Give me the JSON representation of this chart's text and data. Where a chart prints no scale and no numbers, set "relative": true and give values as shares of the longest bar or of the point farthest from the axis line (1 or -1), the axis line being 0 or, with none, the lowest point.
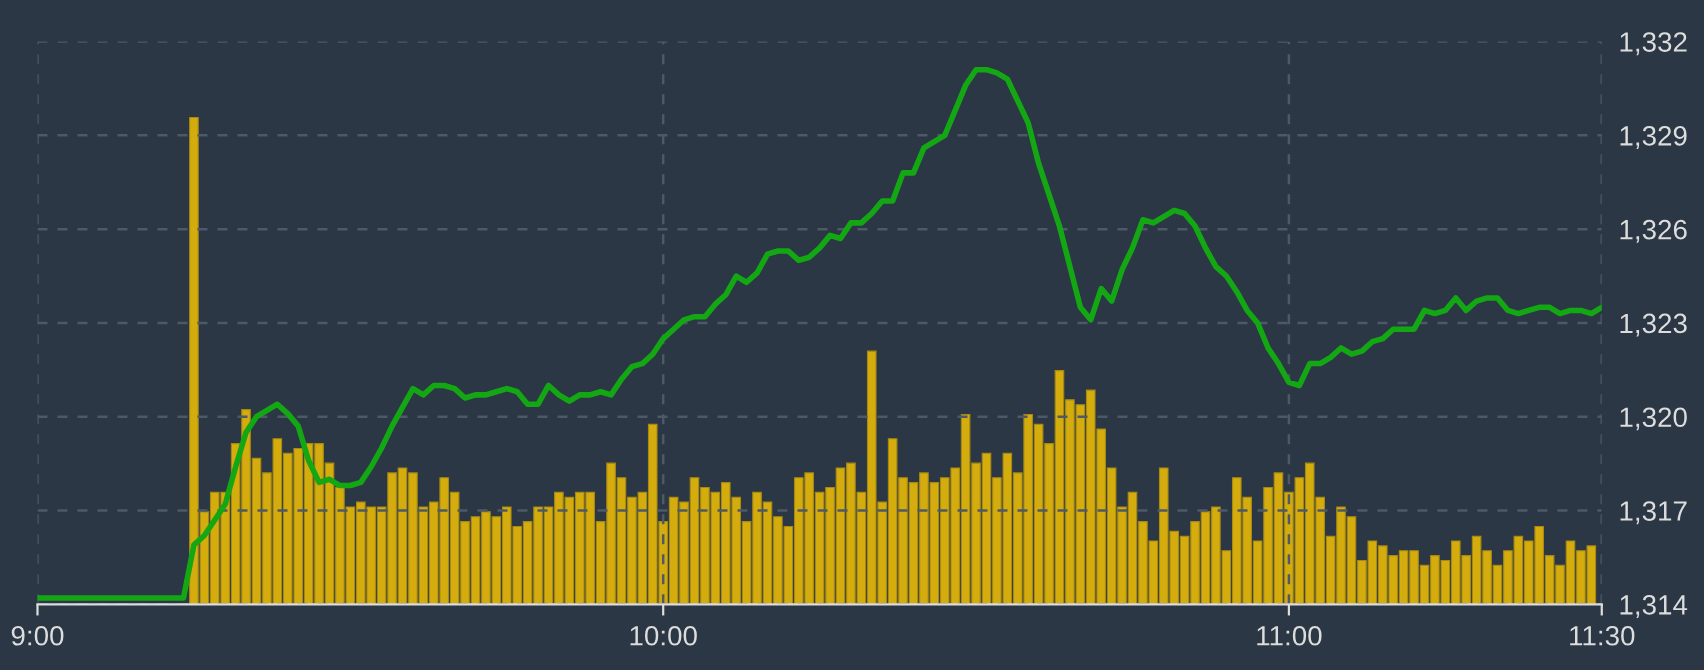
{
  "chart_data": [
    {
      "type": "bar",
      "relative": true,
      "tick_labels": false,
      "color": "#d4ac0d",
      "xlim": [
        9,
        11.5
      ],
      "x": [
        9.25,
        9.2667,
        9.2833,
        9.3,
        9.3167,
        9.3333,
        9.35,
        9.3667,
        9.3833,
        9.4,
        9.4167,
        9.4333,
        9.45,
        9.4667,
        9.4833,
        9.5,
        9.5167,
        9.5333,
        9.55,
        9.5667,
        9.5833,
        9.6,
        9.6167,
        9.6333,
        9.65,
        9.6667,
        9.6833,
        9.7,
        9.7167,
        9.7333,
        9.75,
        9.7667,
        9.7833,
        9.8,
        9.8167,
        9.8333,
        9.85,
        9.8667,
        9.8833,
        9.9,
        9.9167,
        9.9333,
        9.95,
        9.9667,
        9.9833,
        10,
        10.0167,
        10.0333,
        10.05,
        10.0667,
        10.0833,
        10.1,
        10.1167,
        10.1333,
        10.15,
        10.1667,
        10.1833,
        10.2,
        10.2167,
        10.2333,
        10.25,
        10.2667,
        10.2833,
        10.3,
        10.3167,
        10.3333,
        10.35,
        10.3667,
        10.3833,
        10.4,
        10.4167,
        10.4333,
        10.45,
        10.4667,
        10.4833,
        10.5,
        10.5167,
        10.5333,
        10.55,
        10.5667,
        10.5833,
        10.6,
        10.6167,
        10.6333,
        10.65,
        10.6667,
        10.6833,
        10.7,
        10.7167,
        10.7333,
        10.75,
        10.7667,
        10.7833,
        10.8,
        10.8167,
        10.8333,
        10.85,
        10.8667,
        10.8833,
        10.9,
        10.9167,
        10.9333,
        10.95,
        10.9667,
        10.9833,
        11,
        11.0167,
        11.0333,
        11.05,
        11.0667,
        11.0833,
        11.1,
        11.1167,
        11.1333,
        11.15,
        11.1667,
        11.1833,
        11.2,
        11.2167,
        11.2333,
        11.25,
        11.2667,
        11.2833,
        11.3,
        11.3167,
        11.3333,
        11.35,
        11.3667,
        11.3833,
        11.4,
        11.4167,
        11.4333,
        11.45,
        11.4667,
        11.4833
      ],
      "values": [
        1.0,
        0.19,
        0.23,
        0.23,
        0.33,
        0.4,
        0.3,
        0.27,
        0.34,
        0.31,
        0.32,
        0.33,
        0.33,
        0.29,
        0.24,
        0.2,
        0.21,
        0.2,
        0.2,
        0.27,
        0.28,
        0.27,
        0.2,
        0.21,
        0.26,
        0.23,
        0.17,
        0.18,
        0.19,
        0.18,
        0.2,
        0.16,
        0.17,
        0.2,
        0.2,
        0.23,
        0.22,
        0.23,
        0.23,
        0.17,
        0.29,
        0.26,
        0.22,
        0.23,
        0.37,
        0.17,
        0.22,
        0.21,
        0.26,
        0.24,
        0.23,
        0.25,
        0.22,
        0.17,
        0.23,
        0.21,
        0.18,
        0.16,
        0.26,
        0.27,
        0.23,
        0.24,
        0.28,
        0.29,
        0.23,
        0.52,
        0.21,
        0.34,
        0.26,
        0.25,
        0.27,
        0.25,
        0.26,
        0.28,
        0.39,
        0.29,
        0.31,
        0.26,
        0.31,
        0.27,
        0.39,
        0.37,
        0.33,
        0.48,
        0.42,
        0.41,
        0.44,
        0.36,
        0.28,
        0.2,
        0.23,
        0.17,
        0.13,
        0.28,
        0.15,
        0.14,
        0.17,
        0.19,
        0.2,
        0.11,
        0.26,
        0.22,
        0.13,
        0.24,
        0.27,
        0.23,
        0.26,
        0.29,
        0.22,
        0.14,
        0.2,
        0.18,
        0.09,
        0.13,
        0.12,
        0.1,
        0.11,
        0.11,
        0.08,
        0.1,
        0.09,
        0.13,
        0.1,
        0.14,
        0.11,
        0.08,
        0.11,
        0.14,
        0.13,
        0.16,
        0.1,
        0.08,
        0.13,
        0.11,
        0.12
      ]
    },
    {
      "type": "line",
      "color": "#13a813",
      "x": [
        9,
        9.2333,
        9.25,
        9.2667,
        9.2833,
        9.3,
        9.3167,
        9.3333,
        9.35,
        9.3667,
        9.3833,
        9.4,
        9.4167,
        9.4333,
        9.45,
        9.4667,
        9.4833,
        9.5,
        9.5167,
        9.5333,
        9.55,
        9.5667,
        9.5833,
        9.6,
        9.6167,
        9.6333,
        9.65,
        9.6667,
        9.6833,
        9.7,
        9.7167,
        9.7333,
        9.75,
        9.7667,
        9.7833,
        9.8,
        9.8167,
        9.8333,
        9.85,
        9.8667,
        9.8833,
        9.9,
        9.9167,
        9.9333,
        9.95,
        9.9667,
        9.9833,
        10,
        10.0167,
        10.0333,
        10.05,
        10.0667,
        10.0833,
        10.1,
        10.1167,
        10.1333,
        10.15,
        10.1667,
        10.1833,
        10.2,
        10.2167,
        10.2333,
        10.25,
        10.2667,
        10.2833,
        10.3,
        10.3167,
        10.3333,
        10.35,
        10.3667,
        10.3833,
        10.4,
        10.4167,
        10.4333,
        10.45,
        10.4667,
        10.4833,
        10.5,
        10.5167,
        10.5333,
        10.55,
        10.5667,
        10.5833,
        10.6,
        10.6167,
        10.6333,
        10.65,
        10.6667,
        10.6833,
        10.7,
        10.7167,
        10.7333,
        10.75,
        10.7667,
        10.7833,
        10.8,
        10.8167,
        10.8333,
        10.85,
        10.8667,
        10.8833,
        10.9,
        10.9167,
        10.9333,
        10.95,
        10.9667,
        10.9833,
        11,
        11.0167,
        11.0333,
        11.05,
        11.0667,
        11.0833,
        11.1,
        11.1167,
        11.1333,
        11.15,
        11.1667,
        11.1833,
        11.2,
        11.2167,
        11.2333,
        11.25,
        11.2667,
        11.2833,
        11.3,
        11.3167,
        11.3333,
        11.35,
        11.3667,
        11.3833,
        11.4,
        11.4167,
        11.4333,
        11.45,
        11.4667,
        11.4833,
        11.5
      ],
      "values": [
        1314.2,
        1314.2,
        1315.9,
        1316.2,
        1316.7,
        1317.2,
        1318.4,
        1319.5,
        1320.0,
        1320.2,
        1320.4,
        1320.1,
        1319.7,
        1318.6,
        1317.9,
        1318.0,
        1317.8,
        1317.8,
        1317.9,
        1318.4,
        1319.0,
        1319.7,
        1320.3,
        1320.9,
        1320.7,
        1321.0,
        1321.0,
        1320.9,
        1320.6,
        1320.7,
        1320.7,
        1320.8,
        1320.9,
        1320.8,
        1320.4,
        1320.4,
        1321.0,
        1320.7,
        1320.5,
        1320.7,
        1320.7,
        1320.8,
        1320.7,
        1321.2,
        1321.6,
        1321.7,
        1322.0,
        1322.5,
        1322.8,
        1323.1,
        1323.2,
        1323.2,
        1323.6,
        1323.9,
        1324.5,
        1324.3,
        1324.6,
        1325.2,
        1325.3,
        1325.3,
        1325.0,
        1325.1,
        1325.4,
        1325.8,
        1325.7,
        1326.2,
        1326.2,
        1326.5,
        1326.9,
        1326.9,
        1327.8,
        1327.8,
        1328.6,
        1328.8,
        1329.0,
        1329.8,
        1330.6,
        1331.1,
        1331.1,
        1331.0,
        1330.8,
        1330.1,
        1329.4,
        1328.1,
        1327.1,
        1326.1,
        1324.8,
        1323.5,
        1323.1,
        1324.1,
        1323.7,
        1324.7,
        1325.4,
        1326.3,
        1326.2,
        1326.4,
        1326.6,
        1326.5,
        1326.1,
        1325.4,
        1324.8,
        1324.5,
        1324.0,
        1323.4,
        1323.0,
        1322.2,
        1321.7,
        1321.1,
        1321.0,
        1321.7,
        1321.7,
        1321.9,
        1322.2,
        1322.0,
        1322.1,
        1322.4,
        1322.5,
        1322.8,
        1322.8,
        1322.8,
        1323.4,
        1323.3,
        1323.4,
        1323.8,
        1323.4,
        1323.7,
        1323.8,
        1323.8,
        1323.4,
        1323.3,
        1323.4,
        1323.5,
        1323.5,
        1323.3,
        1323.4,
        1323.4,
        1323.3,
        1323.5
      ],
      "xlim": [
        9,
        11.5
      ],
      "xticks": [
        {
          "value": 9,
          "label": "9:00"
        },
        {
          "value": 10,
          "label": "10:00"
        },
        {
          "value": 11,
          "label": "11:00"
        },
        {
          "value": 11.5,
          "label": "11:30"
        }
      ],
      "ylim": [
        1314,
        1332
      ],
      "yticks": [
        {
          "value": 1314,
          "label": "1,314"
        },
        {
          "value": 1317,
          "label": "1,317"
        },
        {
          "value": 1320,
          "label": "1,320"
        },
        {
          "value": 1323,
          "label": "1,323"
        },
        {
          "value": 1326,
          "label": "1,326"
        },
        {
          "value": 1329,
          "label": "1,329"
        },
        {
          "value": 1332,
          "label": "1,332"
        }
      ],
      "grid": true,
      "line_style": "solid",
      "marker": "none"
    }
  ]
}
